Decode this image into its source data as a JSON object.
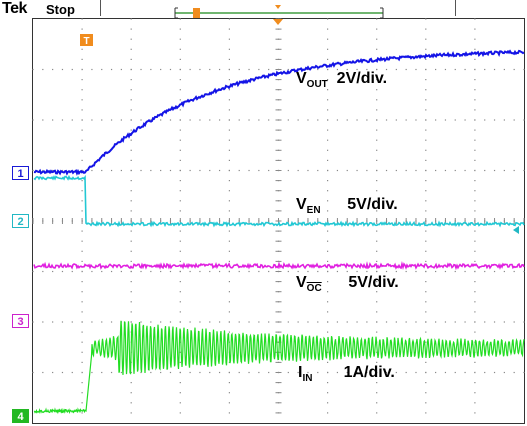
{
  "header": {
    "brand": "Tek",
    "acq_state": "Stop"
  },
  "channels": [
    {
      "id": "1",
      "color": "#1a1ad6"
    },
    {
      "id": "2",
      "color": "#22c4cc"
    },
    {
      "id": "3",
      "color": "#cc22cc"
    },
    {
      "id": "4",
      "color": "#22b822"
    }
  ],
  "trigger_marker": "T",
  "labels": {
    "vout": {
      "main": "V",
      "sub": "OUT",
      "scale": "2V/div."
    },
    "ven": {
      "main": "V",
      "sub": "EN",
      "scale": "5V/div."
    },
    "voc": {
      "main": "V",
      "sub": "OC",
      "scale": "5V/div."
    },
    "iin": {
      "main": "I",
      "sub": "IN",
      "scale": "1A/div."
    }
  },
  "colors": {
    "trigger": "#f08c1e",
    "grid": "#999999",
    "background": "#ffffff"
  }
}
